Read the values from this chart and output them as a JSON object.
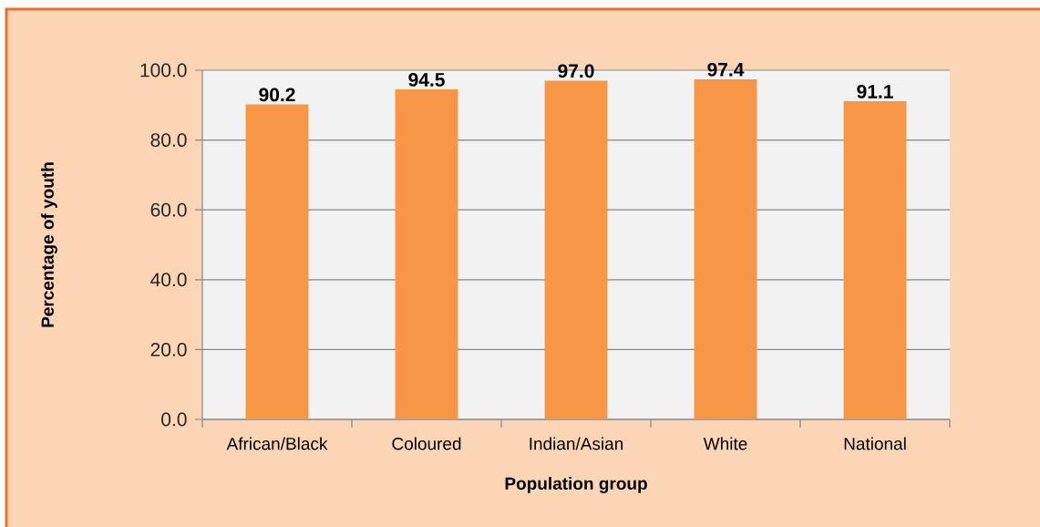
{
  "chart_data": {
    "type": "bar",
    "xlabel": "Population group",
    "ylabel": "Percentage of youth",
    "categories": [
      "African/Black",
      "Coloured",
      "Indian/Asian",
      "White",
      "National"
    ],
    "values": [
      90.2,
      94.5,
      97.0,
      97.4,
      91.1
    ],
    "value_labels": [
      "90.2",
      "94.5",
      "97.0",
      "97.4",
      "91.1"
    ],
    "color": "#f79646",
    "ylim": [
      0,
      100
    ],
    "yticks": [
      {
        "value": 0,
        "label": "0.0"
      },
      {
        "value": 20,
        "label": "20.0"
      },
      {
        "value": 40,
        "label": "40.0"
      },
      {
        "value": 60,
        "label": "60.0"
      },
      {
        "value": 80,
        "label": "80.0"
      },
      {
        "value": 100,
        "label": "100.0"
      }
    ],
    "grid": "y"
  }
}
